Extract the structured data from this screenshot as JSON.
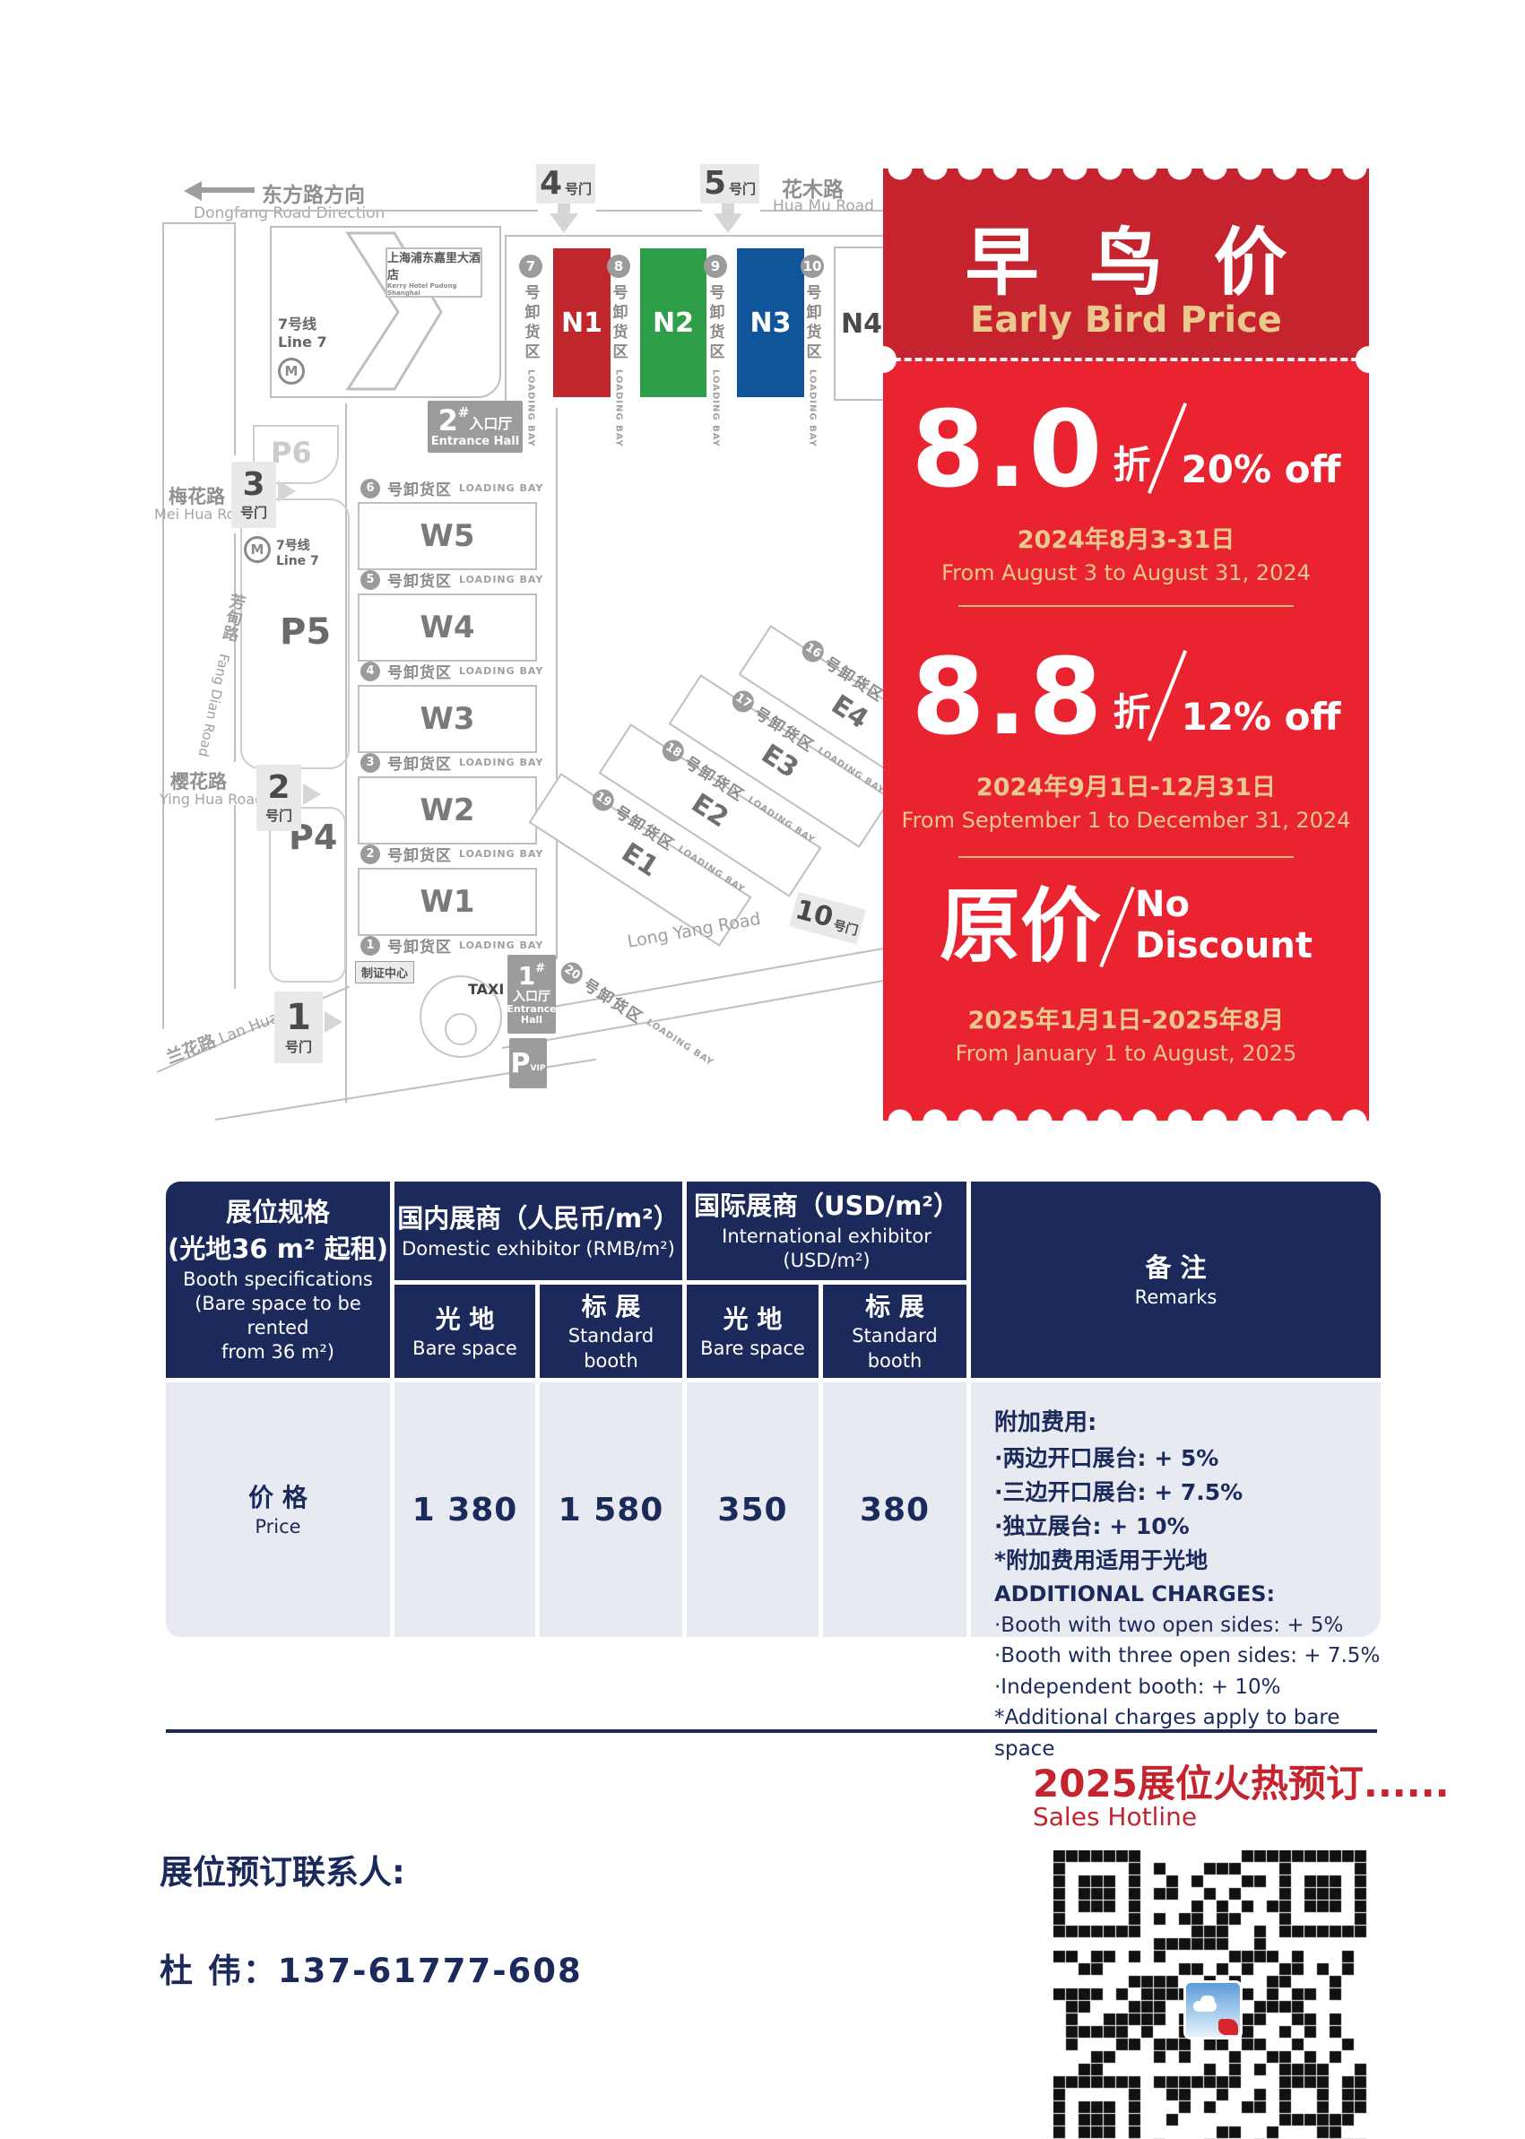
{
  "colors": {
    "coupon_dark": "#c5242e",
    "coupon_bright": "#e9232f",
    "gold": "#eac98e",
    "gold_line": "#d8b87a",
    "navy": "#1b2a5b",
    "body_gray": "#e7eaf0",
    "red_text": "#c5242e"
  },
  "map": {
    "dongfang_zh": "东方路方向",
    "dongfang_en": "Dongfang Road Direction",
    "huamu_zh": "花木路",
    "huamu_en": "Hua Mu Road",
    "meihua_zh": "梅花路",
    "meihua_en": "Mei Hua Road",
    "fangdian_zh": "芳甸路",
    "fangdian_en": "Fang Dian Road",
    "yinghua_zh": "樱花路",
    "yinghua_en": "Ying Hua Road",
    "lanhua_zh": "兰花路",
    "lanhua_en": "Lan Hua Road",
    "longyang_en": "Long Yang Road",
    "hotel_zh": "上海浦东嘉里大酒店",
    "hotel_en": "Kerry Hotel Pudong Shanghai",
    "line7_zh": "7号线",
    "line7_en": "Line 7",
    "gate_suffix": "号门",
    "gates": {
      "g1": "1",
      "g2": "2",
      "g3": "3",
      "g4": "4",
      "g5": "5",
      "g10": "10"
    },
    "entrance_zh": "入口厅",
    "entrance_en": "Entrance Hall",
    "entrance_en1": "Entrance",
    "entrance_en2": "Hall",
    "e2_num": "2",
    "e1_num": "1",
    "hash": "#",
    "p4": "P4",
    "p5": "P5",
    "p6": "P6",
    "p": "P",
    "vip": "VIP",
    "taxi": "TAXI",
    "badge_center": "制证中心",
    "loading_zh": "号卸货区",
    "loading_en": "LOADING BAY",
    "n_halls": [
      {
        "label": "N1",
        "color": "#c0272d"
      },
      {
        "label": "N2",
        "color": "#2f9e49"
      },
      {
        "label": "N3",
        "color": "#10559a"
      },
      {
        "label": "N4",
        "color": "#ffffff"
      }
    ],
    "w_halls": [
      "W5",
      "W4",
      "W3",
      "W2",
      "W1"
    ],
    "e_halls": [
      "E4",
      "E3",
      "E2",
      "E1"
    ],
    "n_bays": [
      "7",
      "8",
      "9",
      "10"
    ],
    "w_bays": [
      "6",
      "5",
      "4",
      "3",
      "2",
      "1"
    ],
    "e_bays": [
      "16",
      "17",
      "18",
      "19",
      "20"
    ]
  },
  "coupon": {
    "title_zh": "早 鸟 价",
    "title_en": "Early Bird Price",
    "tier1": {
      "big": "8.0",
      "zhe": "折",
      "off": "20% off",
      "date_zh": "2024年8月3-31日",
      "date_en": "From August 3 to August 31, 2024"
    },
    "tier2": {
      "big": "8.8",
      "zhe": "折",
      "off": "12% off",
      "date_zh": "2024年9月1日-12月31日",
      "date_en": "From September 1 to December 31, 2024"
    },
    "tier3": {
      "big": "原价",
      "off1": "No",
      "off2": "Discount",
      "date_zh": "2025年1月1日-2025年8月",
      "date_en": "From January 1 to August, 2025"
    }
  },
  "table": {
    "spec": {
      "zh1": "展位规格",
      "zh2": "(光地36 m² 起租)",
      "en1": "Booth specifications",
      "en2": "(Bare space to be rented",
      "en3": "from 36 m²)"
    },
    "domestic": {
      "zh": "国内展商（人民币/m²）",
      "en": "Domestic exhibitor (RMB/m²)"
    },
    "international": {
      "zh": "国际展商（USD/m²）",
      "en": "International exhibitor (USD/m²)"
    },
    "sub": {
      "bare_zh": "光 地",
      "bare_en": "Bare space",
      "std_zh": "标 展",
      "std_en": "Standard booth"
    },
    "remarks_header": {
      "zh": "备 注",
      "en": "Remarks"
    },
    "row": {
      "label_zh": "价 格",
      "label_en": "Price",
      "values": [
        "1 380",
        "1 580",
        "350",
        "380"
      ]
    },
    "remarks": {
      "zh_title": "附加费用:",
      "zh_items": [
        "·两边开口展台: + 5%",
        "·三边开口展台: + 7.5%",
        "·独立展台: + 10%",
        "*附加费用适用于光地"
      ],
      "en_title": "ADDITIONAL CHARGES:",
      "en_items": [
        "·Booth with two open sides: + 5%",
        "·Booth with three open sides: + 7.5%",
        "·Independent booth: + 10%",
        "*Additional charges apply to bare space"
      ]
    }
  },
  "footer": {
    "hotline_zh": "2025展位火热预订......",
    "hotline_en": "Sales Hotline",
    "contact_label": "展位预订联系人:",
    "contact": "杜  伟：137-61777-608"
  }
}
